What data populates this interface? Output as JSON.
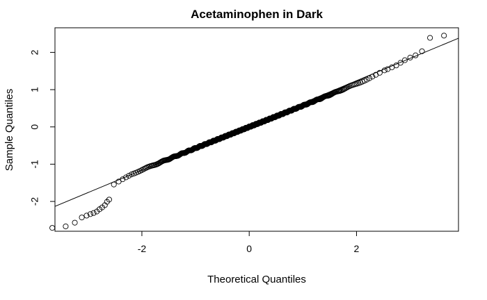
{
  "chart_data": {
    "type": "scatter",
    "title": "Acetaminophen in Dark",
    "xlabel": "Theoretical Quantiles",
    "ylabel": "Sample Quantiles",
    "xlim": [
      -3.62,
      3.9
    ],
    "ylim": [
      -2.8,
      2.66
    ],
    "x_ticks": [
      -2,
      0,
      2
    ],
    "y_ticks": [
      -2,
      -1,
      0,
      1,
      2
    ],
    "x_tick_labels": [
      "-2",
      "0",
      "2"
    ],
    "y_tick_labels": [
      "-2",
      "-1",
      "0",
      "1",
      "2"
    ],
    "grid": false,
    "legend": "none",
    "n_points": 600,
    "reference_line": {
      "intercept": 0.04,
      "slope": 0.6
    },
    "tail_points": [
      {
        "x": -3.67,
        "y": -2.71
      },
      {
        "x": -3.42,
        "y": -2.67
      },
      {
        "x": -3.25,
        "y": -2.57
      },
      {
        "x": -3.12,
        "y": -2.43
      },
      {
        "x": -3.03,
        "y": -2.38
      },
      {
        "x": -2.96,
        "y": -2.34
      },
      {
        "x": -2.9,
        "y": -2.31
      },
      {
        "x": -2.84,
        "y": -2.27
      },
      {
        "x": -2.79,
        "y": -2.21
      },
      {
        "x": -2.74,
        "y": -2.16
      },
      {
        "x": -2.69,
        "y": -2.1
      },
      {
        "x": -2.65,
        "y": -2.01
      },
      {
        "x": -2.61,
        "y": -1.95
      },
      {
        "x": 2.58,
        "y": 1.55
      },
      {
        "x": 2.66,
        "y": 1.6
      },
      {
        "x": 2.74,
        "y": 1.65
      },
      {
        "x": 2.82,
        "y": 1.72
      },
      {
        "x": 2.9,
        "y": 1.79
      },
      {
        "x": 3.0,
        "y": 1.86
      },
      {
        "x": 3.1,
        "y": 1.92
      },
      {
        "x": 3.22,
        "y": 2.03
      },
      {
        "x": 3.37,
        "y": 2.39
      },
      {
        "x": 3.63,
        "y": 2.45
      }
    ]
  }
}
